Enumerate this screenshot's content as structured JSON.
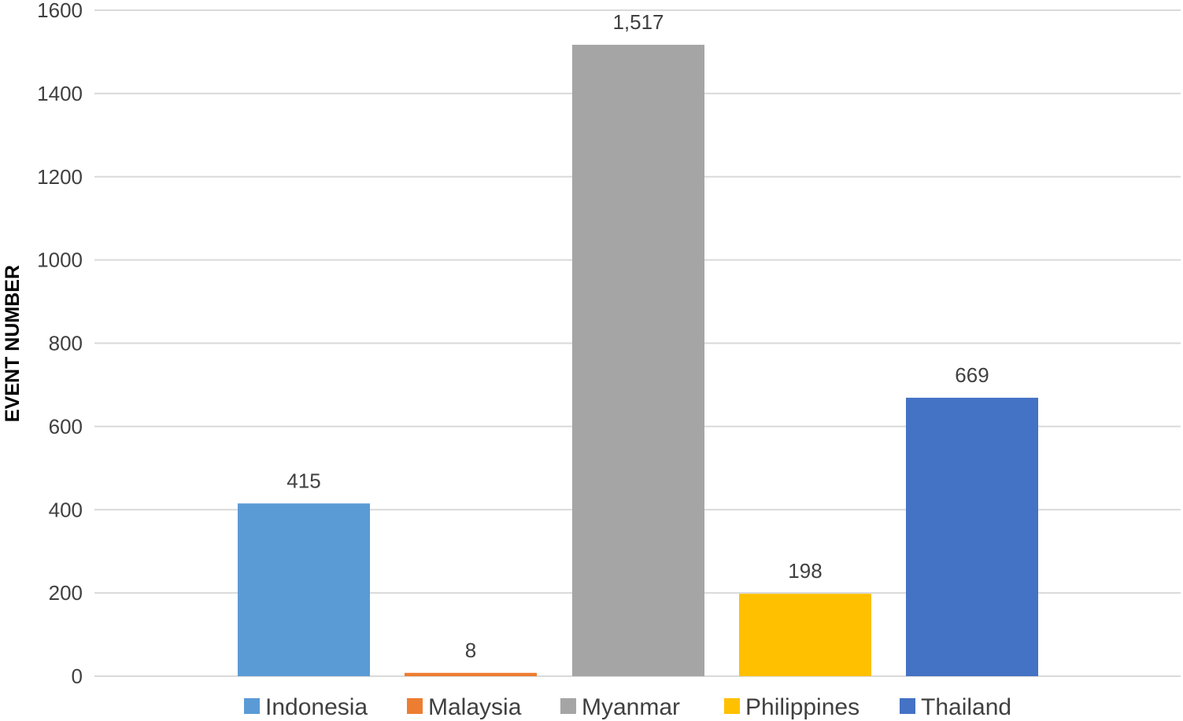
{
  "chart_data": {
    "type": "bar",
    "title": "",
    "xlabel": "",
    "ylabel": "EVENT NUMBER",
    "ylim": [
      0,
      1600
    ],
    "yticks": [
      0,
      200,
      400,
      600,
      800,
      1000,
      1200,
      1400,
      1600
    ],
    "grid": true,
    "legend_position": "bottom",
    "categories": [
      "Indonesia",
      "Malaysia",
      "Myanmar",
      "Philippines",
      "Thailand"
    ],
    "values": [
      415,
      8,
      1517,
      198,
      669
    ],
    "data_labels": [
      "415",
      "8",
      "1,517",
      "198",
      "669"
    ],
    "colors": [
      "#5b9bd5",
      "#ed7d31",
      "#a5a5a5",
      "#ffc000",
      "#4472c4"
    ]
  }
}
